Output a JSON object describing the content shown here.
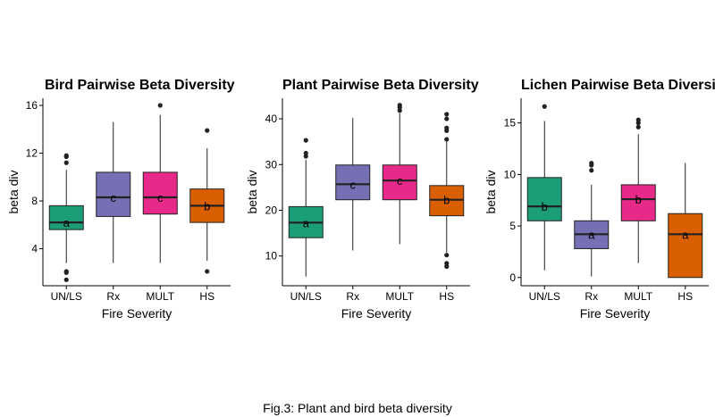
{
  "caption": "Fig.3: Plant and bird beta diversity",
  "colors": {
    "UN/LS": "#1b9e77",
    "Rx": "#7570b3",
    "MULT": "#e7298a",
    "HS": "#d95f02"
  },
  "chart_data": [
    {
      "type": "box",
      "title": "Bird Pairwise Beta Diversity",
      "xlabel": "Fire Severity",
      "ylabel": "beta div",
      "categories": [
        "UN/LS",
        "Rx",
        "MULT",
        "HS"
      ],
      "ylim": [
        0.9,
        16.6
      ],
      "yticks": [
        4,
        8,
        12,
        16
      ],
      "boxes": [
        {
          "category": "UN/LS",
          "min": 2.8,
          "q1": 5.6,
          "median": 6.2,
          "q3": 7.6,
          "max": 10.6,
          "outliers": [
            11.8,
            11.7,
            11.2,
            2.1,
            2.0,
            1.4
          ],
          "letter": "a"
        },
        {
          "category": "Rx",
          "min": 2.8,
          "q1": 6.7,
          "median": 8.3,
          "q3": 10.4,
          "max": 14.6,
          "outliers": [],
          "letter": "c"
        },
        {
          "category": "MULT",
          "min": 2.8,
          "q1": 6.9,
          "median": 8.3,
          "q3": 10.4,
          "max": 15.2,
          "outliers": [
            16.0
          ],
          "letter": "c"
        },
        {
          "category": "HS",
          "min": 3.0,
          "q1": 6.2,
          "median": 7.6,
          "q3": 9.0,
          "max": 12.4,
          "outliers": [
            13.9,
            2.1
          ],
          "letter": "b"
        }
      ]
    },
    {
      "type": "box",
      "title": "Plant Pairwise Beta Diversity",
      "xlabel": "Fire Severity",
      "ylabel": "beta div",
      "categories": [
        "UN/LS",
        "Rx",
        "MULT",
        "HS"
      ],
      "ylim": [
        3.5,
        44.5
      ],
      "yticks": [
        10,
        20,
        30,
        40
      ],
      "boxes": [
        {
          "category": "UN/LS",
          "min": 5.5,
          "q1": 14.0,
          "median": 17.3,
          "q3": 20.8,
          "max": 31.0,
          "outliers": [
            35.3,
            32.5,
            31.8
          ],
          "letter": "a"
        },
        {
          "category": "Rx",
          "min": 11.2,
          "q1": 22.3,
          "median": 25.7,
          "q3": 29.9,
          "max": 40.2,
          "outliers": [],
          "letter": "c"
        },
        {
          "category": "MULT",
          "min": 12.6,
          "q1": 22.3,
          "median": 26.5,
          "q3": 29.9,
          "max": 41.2,
          "outliers": [
            43.0,
            42.5,
            41.8
          ],
          "letter": "c"
        },
        {
          "category": "HS",
          "min": 10.8,
          "q1": 18.8,
          "median": 22.3,
          "q3": 25.4,
          "max": 35.0,
          "outliers": [
            41.0,
            40.0,
            38.0,
            37.4,
            35.5,
            10.2,
            8.4,
            7.7
          ],
          "letter": "b"
        }
      ]
    },
    {
      "type": "box",
      "title": "Lichen Pairwise Beta Diversity",
      "xlabel": "Fire Severity",
      "ylabel": "beta div",
      "categories": [
        "UN/LS",
        "Rx",
        "MULT",
        "HS"
      ],
      "ylim": [
        -0.8,
        17.4
      ],
      "yticks": [
        0,
        5,
        10,
        15
      ],
      "boxes": [
        {
          "category": "UN/LS",
          "min": 0.7,
          "q1": 5.5,
          "median": 6.9,
          "q3": 9.7,
          "max": 15.2,
          "outliers": [
            16.6
          ],
          "letter": "b"
        },
        {
          "category": "Rx",
          "min": 0.1,
          "q1": 2.8,
          "median": 4.2,
          "q3": 5.5,
          "max": 9.0,
          "outliers": [
            11.1,
            10.9,
            10.4
          ],
          "letter": "a"
        },
        {
          "category": "MULT",
          "min": 1.4,
          "q1": 5.5,
          "median": 7.6,
          "q3": 9.0,
          "max": 13.9,
          "outliers": [
            15.3,
            15.0,
            14.6
          ],
          "letter": "b"
        },
        {
          "category": "HS",
          "min": 0.0,
          "q1": 0.0,
          "median": 4.2,
          "q3": 6.2,
          "max": 11.1,
          "outliers": [],
          "letter": "a"
        }
      ]
    }
  ]
}
